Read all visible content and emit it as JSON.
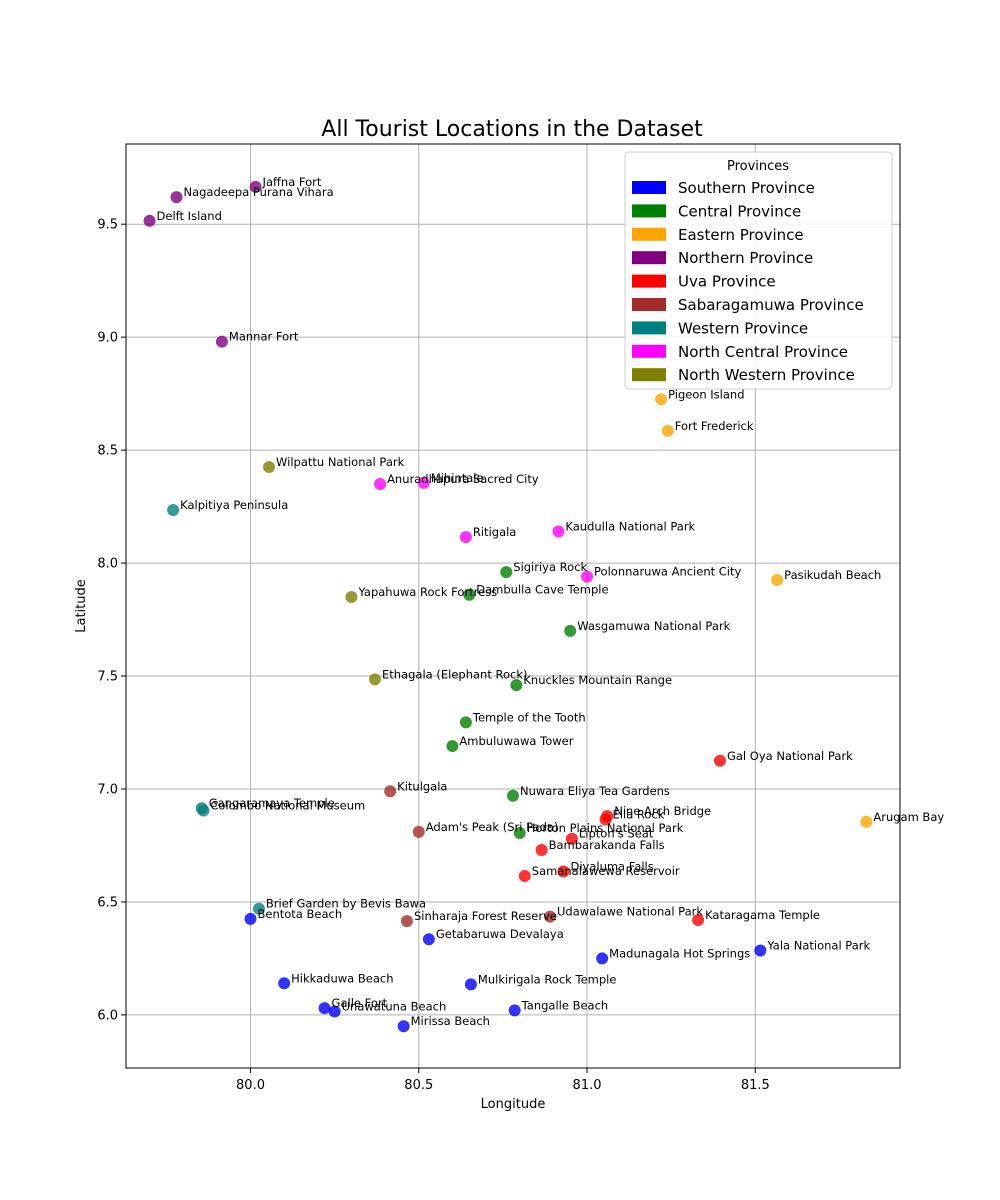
{
  "chart_data": {
    "type": "scatter",
    "title": "All Tourist Locations in the Dataset",
    "xlabel": "Longitude",
    "ylabel": "Latitude",
    "xlim": [
      79.63,
      81.93
    ],
    "ylim": [
      5.765,
      9.855
    ],
    "xticks": [
      {
        "value": 80.0,
        "label": "80.0"
      },
      {
        "value": 80.5,
        "label": "80.5"
      },
      {
        "value": 81.0,
        "label": "81.0"
      },
      {
        "value": 81.5,
        "label": "81.5"
      }
    ],
    "yticks": [
      {
        "value": 6.0,
        "label": "6.0"
      },
      {
        "value": 6.5,
        "label": "6.5"
      },
      {
        "value": 7.0,
        "label": "7.0"
      },
      {
        "value": 7.5,
        "label": "7.5"
      },
      {
        "value": 8.0,
        "label": "8.0"
      },
      {
        "value": 8.5,
        "label": "8.5"
      },
      {
        "value": 9.0,
        "label": "9.0"
      },
      {
        "value": 9.5,
        "label": "9.5"
      }
    ],
    "grid": true,
    "legend": {
      "title": "Provinces",
      "position": "top-right"
    },
    "series": [
      {
        "name": "Southern Province",
        "color": "#0000ff",
        "points": [
          {
            "x": 80.0,
            "y": 6.425,
            "label": "Bentota Beach"
          },
          {
            "x": 80.1,
            "y": 6.14,
            "label": "Hikkaduwa Beach"
          },
          {
            "x": 80.22,
            "y": 6.03,
            "label": "Galle Fort"
          },
          {
            "x": 80.25,
            "y": 6.015,
            "label": "Unawatuna Beach"
          },
          {
            "x": 80.455,
            "y": 5.95,
            "label": "Mirissa Beach"
          },
          {
            "x": 80.53,
            "y": 6.335,
            "label": "Getabaruwa Devalaya"
          },
          {
            "x": 80.655,
            "y": 6.135,
            "label": "Mulkirigala Rock Temple"
          },
          {
            "x": 80.785,
            "y": 6.02,
            "label": "Tangalle Beach"
          },
          {
            "x": 81.045,
            "y": 6.25,
            "label": "Madunagala Hot Springs"
          },
          {
            "x": 81.515,
            "y": 6.285,
            "label": "Yala National Park"
          }
        ]
      },
      {
        "name": "Central Province",
        "color": "#008000",
        "points": [
          {
            "x": 80.76,
            "y": 7.96,
            "label": "Sigiriya Rock"
          },
          {
            "x": 80.65,
            "y": 7.86,
            "label": "Dambulla Cave Temple"
          },
          {
            "x": 80.95,
            "y": 7.7,
            "label": "Wasgamuwa National Park"
          },
          {
            "x": 80.79,
            "y": 7.46,
            "label": "Knuckles Mountain Range"
          },
          {
            "x": 80.64,
            "y": 7.295,
            "label": "Temple of the Tooth"
          },
          {
            "x": 80.6,
            "y": 7.19,
            "label": "Ambuluwawa Tower"
          },
          {
            "x": 80.78,
            "y": 6.97,
            "label": "Nuwara Eliya Tea Gardens"
          },
          {
            "x": 80.8,
            "y": 6.805,
            "label": "Horton Plains National Park"
          }
        ]
      },
      {
        "name": "Eastern Province",
        "color": "#ffa500",
        "points": [
          {
            "x": 81.22,
            "y": 8.725,
            "label": "Pigeon Island"
          },
          {
            "x": 81.24,
            "y": 8.585,
            "label": "Fort Frederick"
          },
          {
            "x": 81.565,
            "y": 7.925,
            "label": "Pasikudah Beach"
          },
          {
            "x": 81.83,
            "y": 6.855,
            "label": "Arugam Bay"
          }
        ]
      },
      {
        "name": "Northern Province",
        "color": "#800080",
        "points": [
          {
            "x": 80.015,
            "y": 9.665,
            "label": "Jaffna Fort"
          },
          {
            "x": 79.78,
            "y": 9.62,
            "label": "Nagadeepa Purana Vihara"
          },
          {
            "x": 79.7,
            "y": 9.515,
            "label": "Delft Island"
          },
          {
            "x": 79.915,
            "y": 8.98,
            "label": "Mannar Fort"
          }
        ]
      },
      {
        "name": "Uva Province",
        "color": "#ff0000",
        "points": [
          {
            "x": 81.395,
            "y": 7.125,
            "label": "Gal Oya National Park"
          },
          {
            "x": 81.06,
            "y": 6.88,
            "label": "Nine Arch Bridge"
          },
          {
            "x": 81.055,
            "y": 6.865,
            "label": "Ella Rock"
          },
          {
            "x": 80.955,
            "y": 6.78,
            "label": "Lipton's Seat"
          },
          {
            "x": 80.865,
            "y": 6.73,
            "label": "Bambarakanda Falls"
          },
          {
            "x": 80.93,
            "y": 6.635,
            "label": "Diyaluma Falls"
          },
          {
            "x": 80.815,
            "y": 6.615,
            "label": "Samanalawewa Reservoir"
          },
          {
            "x": 81.33,
            "y": 6.42,
            "label": "Kataragama Temple"
          }
        ]
      },
      {
        "name": "Sabaragamuwa Province",
        "color": "#a52a2a",
        "points": [
          {
            "x": 80.415,
            "y": 6.99,
            "label": "Kitulgala"
          },
          {
            "x": 80.5,
            "y": 6.81,
            "label": "Adam's Peak (Sri Pada)"
          },
          {
            "x": 80.89,
            "y": 6.435,
            "label": "Udawalawe National Park"
          },
          {
            "x": 80.465,
            "y": 6.415,
            "label": "Sinharaja Forest Reserve"
          }
        ]
      },
      {
        "name": "Western Province",
        "color": "#008080",
        "points": [
          {
            "x": 79.77,
            "y": 8.235,
            "label": "Kalpitiya Peninsula"
          },
          {
            "x": 79.855,
            "y": 6.915,
            "label": "Gangaramaya Temple"
          },
          {
            "x": 79.86,
            "y": 6.905,
            "label": "Colombo National Museum"
          },
          {
            "x": 80.025,
            "y": 6.47,
            "label": "Brief Garden by Bevis Bawa"
          }
        ]
      },
      {
        "name": "North Central Province",
        "color": "#ff00ff",
        "points": [
          {
            "x": 80.385,
            "y": 8.35,
            "label": "Anuradhapura Sacred City"
          },
          {
            "x": 80.515,
            "y": 8.355,
            "label": "Mihintale"
          },
          {
            "x": 80.64,
            "y": 8.115,
            "label": "Ritigala"
          },
          {
            "x": 80.915,
            "y": 8.14,
            "label": "Kaudulla National Park"
          },
          {
            "x": 81.0,
            "y": 7.94,
            "label": "Polonnaruwa Ancient City"
          }
        ]
      },
      {
        "name": "North Western Province",
        "color": "#808000",
        "points": [
          {
            "x": 80.055,
            "y": 8.425,
            "label": "Wilpattu National Park"
          },
          {
            "x": 80.3,
            "y": 7.85,
            "label": "Yapahuwa Rock Fortress"
          },
          {
            "x": 80.37,
            "y": 7.485,
            "label": "Ethagala (Elephant Rock)"
          }
        ]
      }
    ]
  }
}
